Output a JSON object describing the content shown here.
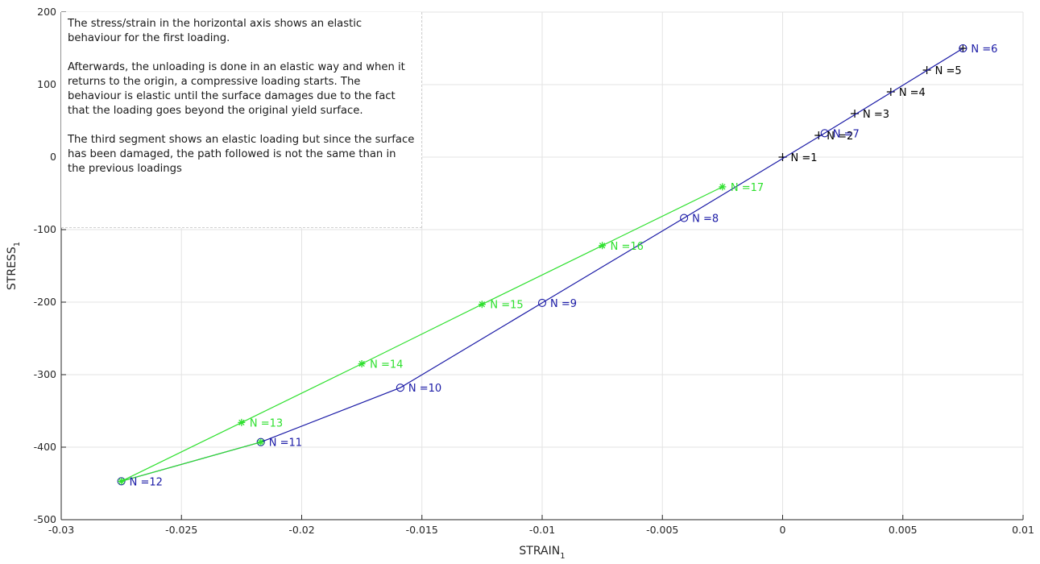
{
  "chart_data": {
    "type": "line",
    "xlabel": "STRAIN",
    "xlabel_sub": "1",
    "ylabel": "STRESS",
    "ylabel_sub": "1",
    "xlim": [
      -0.03,
      0.01
    ],
    "ylim": [
      -500,
      200
    ],
    "xticks": [
      -0.03,
      -0.025,
      -0.02,
      -0.015,
      -0.01,
      -0.005,
      0,
      0.005,
      0.01
    ],
    "xtick_labels": [
      "-0.03",
      "-0.025",
      "-0.02",
      "-0.015",
      "-0.01",
      "-0.005",
      "0",
      "0.005",
      "0.01"
    ],
    "yticks": [
      -500,
      -400,
      -300,
      -200,
      -100,
      0,
      100,
      200
    ],
    "ytick_labels": [
      "-500",
      "-400",
      "-300",
      "-200",
      "-100",
      "0",
      "100",
      "200"
    ],
    "grid": true,
    "series": [
      {
        "color": "#000000",
        "marker": "plus",
        "line": false,
        "points": [
          {
            "x": 0,
            "y": 0,
            "label": "N =1"
          },
          {
            "x": 0.0015,
            "y": 30,
            "label": "N =2"
          },
          {
            "x": 0.003,
            "y": 60,
            "label": "N =3"
          },
          {
            "x": 0.0045,
            "y": 90,
            "label": "N =4"
          },
          {
            "x": 0.006,
            "y": 120,
            "label": "N =5"
          },
          {
            "x": 0.0075,
            "y": 150,
            "label": ""
          }
        ]
      },
      {
        "color": "#1a1aa6",
        "marker": "circle",
        "line": true,
        "points": [
          {
            "x": 0.0075,
            "y": 150,
            "label": "N =6"
          },
          {
            "x": 0.00175,
            "y": 33,
            "label": "N =7"
          },
          {
            "x": -0.0041,
            "y": -84,
            "label": "N =8"
          },
          {
            "x": -0.01,
            "y": -201,
            "label": "N =9"
          },
          {
            "x": -0.0159,
            "y": -318,
            "label": "N =10"
          },
          {
            "x": -0.0217,
            "y": -393,
            "label": "N =11"
          },
          {
            "x": -0.0275,
            "y": -447,
            "label": "N =12"
          }
        ]
      },
      {
        "color": "#2fe02f",
        "marker": "asterisk",
        "line": true,
        "points": [
          {
            "x": -0.0217,
            "y": -393,
            "label": ""
          },
          {
            "x": -0.0275,
            "y": -447,
            "label": ""
          },
          {
            "x": -0.0225,
            "y": -366,
            "label": "N =13"
          },
          {
            "x": -0.0175,
            "y": -285,
            "label": "N =14"
          },
          {
            "x": -0.0125,
            "y": -203,
            "label": "N =15"
          },
          {
            "x": -0.0075,
            "y": -122,
            "label": "N =16"
          },
          {
            "x": -0.0025,
            "y": -41,
            "label": "N =17"
          }
        ]
      }
    ],
    "annotation": [
      "The stress/strain in the horizontal axis shows an elastic behaviour for the first loading.",
      "Afterwards, the unloading is done in an elastic way and when it returns to the origin, a compressive loading starts. The behaviour is elastic until the surface damages due to the fact that the loading goes beyond the original yield surface.",
      "The third segment shows an elastic loading but since the surface has been damaged, the path followed is not the same than in the previous loadings"
    ]
  }
}
